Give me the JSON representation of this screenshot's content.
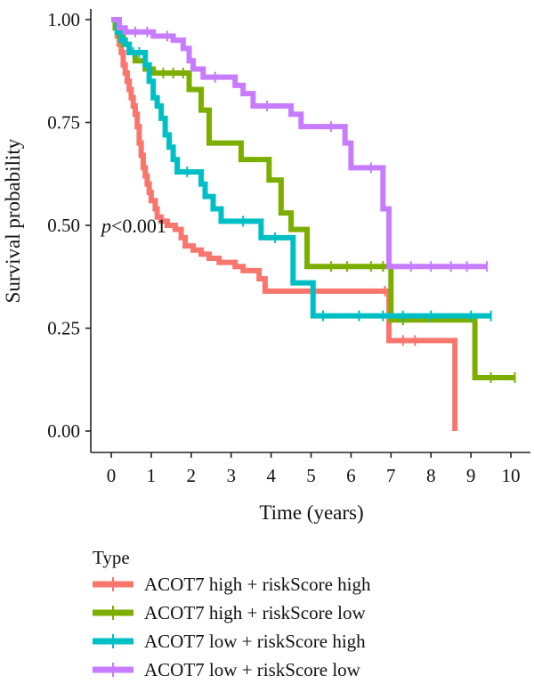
{
  "chart_data": {
    "type": "line",
    "subtype": "kaplan-meier",
    "xlabel": "Time (years)",
    "ylabel": "Survival probability",
    "xlim": [
      0,
      10
    ],
    "ylim": [
      0,
      1
    ],
    "xticks": [
      0,
      1,
      2,
      3,
      4,
      5,
      6,
      7,
      8,
      9,
      10
    ],
    "yticks": [
      0,
      0.25,
      0.5,
      0.75,
      1
    ],
    "ytick_labels": [
      "0.00",
      "0.25",
      "0.50",
      "0.75",
      "1.00"
    ],
    "grid": false,
    "annotation": {
      "prefix": "p",
      "text": "<0.001"
    },
    "legend": {
      "title": "Type",
      "position": "bottom"
    },
    "series": [
      {
        "name": "ACOT7 high + riskScore high",
        "color": "#F8766D",
        "steps": [
          [
            0,
            1.0
          ],
          [
            0.1,
            0.98
          ],
          [
            0.15,
            0.96
          ],
          [
            0.2,
            0.94
          ],
          [
            0.25,
            0.92
          ],
          [
            0.3,
            0.89
          ],
          [
            0.35,
            0.87
          ],
          [
            0.4,
            0.85
          ],
          [
            0.45,
            0.83
          ],
          [
            0.5,
            0.81
          ],
          [
            0.55,
            0.79
          ],
          [
            0.6,
            0.77
          ],
          [
            0.65,
            0.74
          ],
          [
            0.7,
            0.7
          ],
          [
            0.75,
            0.67
          ],
          [
            0.8,
            0.64
          ],
          [
            0.85,
            0.62
          ],
          [
            0.9,
            0.6
          ],
          [
            0.95,
            0.58
          ],
          [
            1.0,
            0.56
          ],
          [
            1.1,
            0.54
          ],
          [
            1.15,
            0.52
          ],
          [
            1.25,
            0.51
          ],
          [
            1.4,
            0.5
          ],
          [
            1.6,
            0.49
          ],
          [
            1.75,
            0.47
          ],
          [
            1.85,
            0.45
          ],
          [
            2.05,
            0.44
          ],
          [
            2.25,
            0.43
          ],
          [
            2.45,
            0.42
          ],
          [
            2.7,
            0.41
          ],
          [
            3.1,
            0.4
          ],
          [
            3.3,
            0.39
          ],
          [
            3.7,
            0.37
          ],
          [
            3.85,
            0.36
          ],
          [
            3.85,
            0.34
          ],
          [
            6.95,
            0.34
          ],
          [
            6.95,
            0.22
          ],
          [
            8.6,
            0.22
          ],
          [
            8.6,
            0.0
          ]
        ],
        "censor": [
          6.85,
          7.3,
          7.6
        ]
      },
      {
        "name": "ACOT7 high + riskScore low",
        "color": "#7CAE00",
        "steps": [
          [
            0,
            1.0
          ],
          [
            0.1,
            0.98
          ],
          [
            0.2,
            0.96
          ],
          [
            0.3,
            0.94
          ],
          [
            0.45,
            0.92
          ],
          [
            0.6,
            0.9
          ],
          [
            0.85,
            0.88
          ],
          [
            1.05,
            0.87
          ],
          [
            1.95,
            0.87
          ],
          [
            1.95,
            0.83
          ],
          [
            2.25,
            0.83
          ],
          [
            2.25,
            0.78
          ],
          [
            2.45,
            0.78
          ],
          [
            2.45,
            0.7
          ],
          [
            3.25,
            0.7
          ],
          [
            3.25,
            0.66
          ],
          [
            3.95,
            0.66
          ],
          [
            3.95,
            0.61
          ],
          [
            4.25,
            0.61
          ],
          [
            4.25,
            0.53
          ],
          [
            4.5,
            0.53
          ],
          [
            4.5,
            0.49
          ],
          [
            4.9,
            0.49
          ],
          [
            4.9,
            0.4
          ],
          [
            7.0,
            0.4
          ],
          [
            7.0,
            0.27
          ],
          [
            9.1,
            0.27
          ],
          [
            9.1,
            0.13
          ],
          [
            10.1,
            0.13
          ]
        ],
        "censor": [
          1.3,
          1.55,
          1.8,
          5.5,
          5.9,
          6.5,
          6.8,
          7.3,
          9.5,
          10.1
        ]
      },
      {
        "name": "ACOT7 low + riskScore high",
        "color": "#00BFC4",
        "steps": [
          [
            0,
            1.0
          ],
          [
            0.15,
            0.97
          ],
          [
            0.25,
            0.95
          ],
          [
            0.35,
            0.94
          ],
          [
            0.45,
            0.92
          ],
          [
            0.85,
            0.89
          ],
          [
            0.95,
            0.85
          ],
          [
            1.05,
            0.81
          ],
          [
            1.15,
            0.79
          ],
          [
            1.25,
            0.76
          ],
          [
            1.35,
            0.72
          ],
          [
            1.45,
            0.69
          ],
          [
            1.55,
            0.66
          ],
          [
            1.65,
            0.63
          ],
          [
            2.15,
            0.63
          ],
          [
            2.25,
            0.6
          ],
          [
            2.35,
            0.57
          ],
          [
            2.55,
            0.54
          ],
          [
            2.75,
            0.51
          ],
          [
            3.75,
            0.51
          ],
          [
            3.75,
            0.47
          ],
          [
            4.55,
            0.47
          ],
          [
            4.55,
            0.36
          ],
          [
            5.05,
            0.36
          ],
          [
            5.05,
            0.28
          ],
          [
            9.5,
            0.28
          ]
        ],
        "censor": [
          0.55,
          0.7,
          1.9,
          3.3,
          4.1,
          5.3,
          6.2,
          6.8,
          7.3,
          8.0,
          9.0,
          9.5
        ]
      },
      {
        "name": "ACOT7 low + riskScore low",
        "color": "#C77CFF",
        "steps": [
          [
            0,
            1.0
          ],
          [
            0.2,
            0.98
          ],
          [
            0.35,
            0.97
          ],
          [
            0.95,
            0.97
          ],
          [
            1.05,
            0.96
          ],
          [
            1.55,
            0.95
          ],
          [
            1.8,
            0.93
          ],
          [
            1.95,
            0.9
          ],
          [
            2.05,
            0.88
          ],
          [
            2.3,
            0.86
          ],
          [
            3.0,
            0.86
          ],
          [
            3.1,
            0.84
          ],
          [
            3.3,
            0.82
          ],
          [
            3.55,
            0.79
          ],
          [
            4.35,
            0.79
          ],
          [
            4.5,
            0.77
          ],
          [
            4.75,
            0.74
          ],
          [
            5.85,
            0.74
          ],
          [
            5.85,
            0.7
          ],
          [
            6.0,
            0.7
          ],
          [
            6.0,
            0.64
          ],
          [
            6.8,
            0.64
          ],
          [
            6.8,
            0.54
          ],
          [
            6.95,
            0.54
          ],
          [
            6.95,
            0.4
          ],
          [
            9.4,
            0.4
          ]
        ],
        "censor": [
          0.6,
          0.9,
          1.4,
          2.6,
          3.9,
          5.5,
          6.5,
          7.5,
          8.0,
          8.5,
          8.9,
          9.4
        ]
      }
    ]
  }
}
